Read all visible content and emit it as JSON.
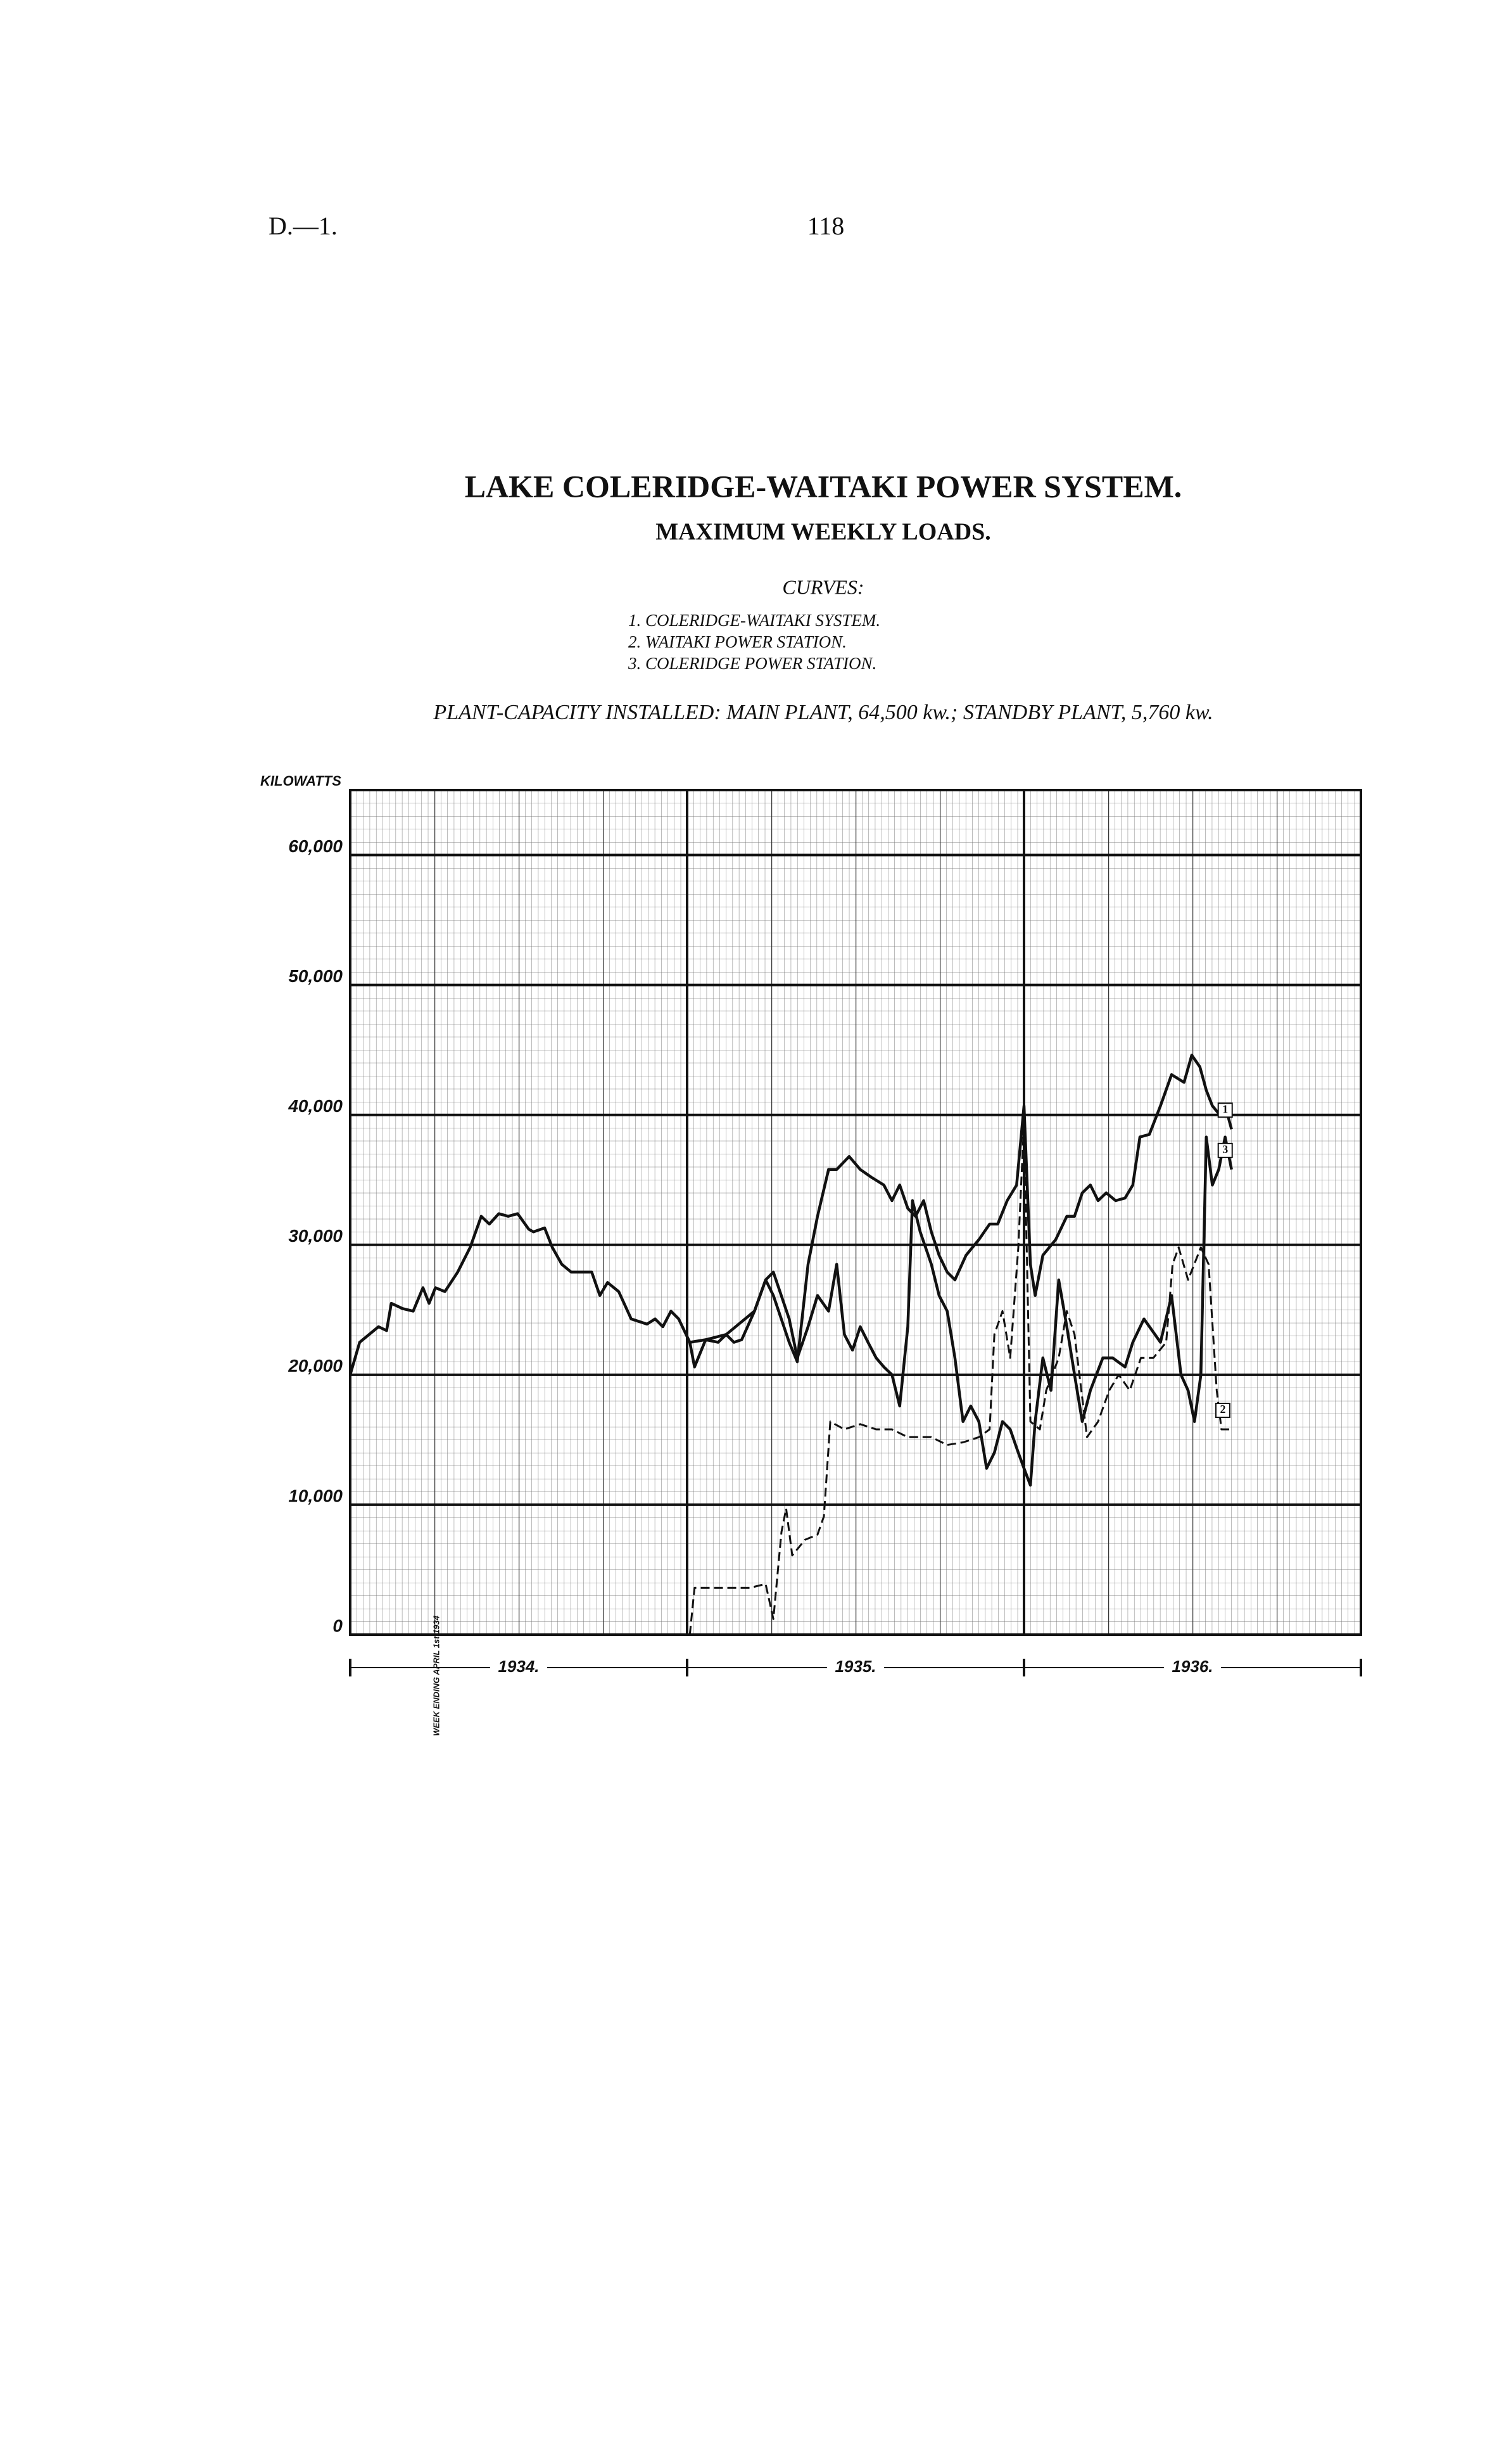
{
  "header": {
    "left": "D.—1.",
    "right": "118"
  },
  "chart_data": {
    "type": "line",
    "title": "LAKE COLERIDGE-WAITAKI POWER SYSTEM.",
    "subtitle": "MAXIMUM WEEKLY LOADS.",
    "curves_heading": "CURVES:",
    "curve_descriptions": [
      "1. COLERIDGE-WAITAKI SYSTEM.",
      "2. WAITAKI POWER STATION.",
      "3. COLERIDGE POWER STATION."
    ],
    "note": "PLANT-CAPACITY INSTALLED: MAIN PLANT, 64,500 kw.; STANDBY PLANT, 5,760 kw.",
    "y_label": "KILOWATTS",
    "x_note": "WEEK ENDING APRIL 1st 1934",
    "xlim": [
      1934,
      1937
    ],
    "xticks": [
      {
        "value": 1934.5,
        "label": "1934."
      },
      {
        "value": 1935.5,
        "label": "1935."
      },
      {
        "value": 1936.5,
        "label": "1936."
      }
    ],
    "ylim": [
      0,
      65000
    ],
    "yticks": [
      0,
      {
        "value": 10000,
        "label": "10,000"
      },
      {
        "value": 20000,
        "label": "20,000"
      },
      {
        "value": 30000,
        "label": "30,000"
      },
      {
        "value": 40000,
        "label": "40,000"
      },
      {
        "value": 50000,
        "label": "50,000"
      },
      {
        "value": 60000,
        "label": "60,000"
      }
    ],
    "grid": true,
    "series": [
      {
        "name": "1",
        "color": "#111111",
        "dashed": false,
        "x": [
          1934.0,
          1934.028,
          1934.084,
          1934.108,
          1934.122,
          1934.155,
          1934.187,
          1934.216,
          1934.234,
          1934.253,
          1934.281,
          1934.319,
          1934.356,
          1934.389,
          1934.413,
          1934.441,
          1934.469,
          1934.497,
          1934.53,
          1934.544,
          1934.577,
          1934.6,
          1934.628,
          1934.656,
          1934.684,
          1934.717,
          1934.741,
          1934.764,
          1934.797,
          1934.834,
          1934.881,
          1934.905,
          1934.928,
          1934.952,
          1934.975,
          1935.008,
          1935.022,
          1935.055,
          1935.092,
          1935.116,
          1935.139,
          1935.162,
          1935.2,
          1935.233,
          1935.256,
          1935.303,
          1935.327,
          1935.359,
          1935.387,
          1935.42,
          1935.444,
          1935.481,
          1935.514,
          1935.547,
          1935.584,
          1935.608,
          1935.631,
          1935.655,
          1935.678,
          1935.702,
          1935.725,
          1935.748,
          1935.772,
          1935.795,
          1935.828,
          1935.866,
          1935.898,
          1935.922,
          1935.95,
          1935.978,
          1936.0,
          1936.019,
          1936.033,
          1936.056,
          1936.094,
          1936.127,
          1936.15,
          1936.173,
          1936.197,
          1936.22,
          1936.244,
          1936.272,
          1936.3,
          1936.323,
          1936.344,
          1936.372,
          1936.405,
          1936.438,
          1936.475,
          1936.498,
          1936.522,
          1936.541,
          1936.559,
          1936.578,
          1936.597,
          1936.616
        ],
        "values": [
          20000,
          22500,
          23700,
          23400,
          25500,
          25100,
          24900,
          26700,
          25500,
          26700,
          26400,
          27900,
          29800,
          32200,
          31600,
          32400,
          32200,
          32400,
          31200,
          31000,
          31300,
          29800,
          28500,
          27900,
          27900,
          27900,
          26100,
          27100,
          26400,
          24300,
          23900,
          24300,
          23700,
          24900,
          24300,
          22500,
          20600,
          22700,
          22500,
          23100,
          22500,
          22700,
          24900,
          27300,
          26100,
          22500,
          21000,
          28500,
          32200,
          35800,
          35800,
          36800,
          35800,
          35200,
          34600,
          33400,
          34600,
          32800,
          32200,
          33400,
          31000,
          29200,
          27900,
          27300,
          29200,
          30400,
          31600,
          31600,
          33400,
          34600,
          40700,
          28500,
          26100,
          29200,
          30400,
          32200,
          32200,
          34000,
          34600,
          33400,
          34000,
          33400,
          33600,
          34600,
          38300,
          38500,
          40700,
          43100,
          42500,
          44600,
          43700,
          41900,
          40700,
          40100,
          40700,
          38900
        ]
      },
      {
        "name": "2",
        "color": "#111111",
        "dashed": true,
        "x": [
          1935.008,
          1935.022,
          1935.069,
          1935.139,
          1935.186,
          1935.233,
          1935.256,
          1935.28,
          1935.294,
          1935.312,
          1935.35,
          1935.387,
          1935.406,
          1935.425,
          1935.467,
          1935.514,
          1935.561,
          1935.608,
          1935.655,
          1935.725,
          1935.772,
          1935.819,
          1935.866,
          1935.898,
          1935.912,
          1935.936,
          1935.959,
          1935.983,
          1936.0,
          1936.019,
          1936.047,
          1936.066,
          1936.103,
          1936.127,
          1936.15,
          1936.187,
          1936.22,
          1936.253,
          1936.281,
          1936.314,
          1936.347,
          1936.384,
          1936.422,
          1936.441,
          1936.459,
          1936.487,
          1936.525,
          1936.548,
          1936.572,
          1936.586,
          1936.609
        ],
        "values": [
          0,
          3600,
          3600,
          3600,
          3600,
          3900,
          1200,
          7900,
          9700,
          6100,
          7300,
          7700,
          9100,
          16400,
          15800,
          16200,
          15800,
          15800,
          15200,
          15200,
          14600,
          14800,
          15200,
          15800,
          23100,
          24900,
          21300,
          29800,
          39500,
          16400,
          15800,
          18800,
          21300,
          24900,
          23100,
          15200,
          16400,
          18800,
          20000,
          18800,
          21300,
          21300,
          22500,
          28500,
          29800,
          27300,
          29800,
          28500,
          18800,
          15800,
          15800
        ]
      },
      {
        "name": "3",
        "color": "#111111",
        "dashed": false,
        "x": [
          1935.008,
          1935.055,
          1935.116,
          1935.2,
          1935.233,
          1935.256,
          1935.303,
          1935.327,
          1935.359,
          1935.387,
          1935.42,
          1935.444,
          1935.467,
          1935.491,
          1935.514,
          1935.537,
          1935.561,
          1935.584,
          1935.608,
          1935.631,
          1935.655,
          1935.669,
          1935.692,
          1935.725,
          1935.748,
          1935.772,
          1935.795,
          1935.819,
          1935.842,
          1935.866,
          1935.889,
          1935.912,
          1935.936,
          1935.959,
          1935.983,
          1936.0,
          1936.019,
          1936.033,
          1936.056,
          1936.08,
          1936.103,
          1936.127,
          1936.15,
          1936.173,
          1936.197,
          1936.234,
          1936.263,
          1936.3,
          1936.323,
          1936.356,
          1936.405,
          1936.438,
          1936.466,
          1936.487,
          1936.506,
          1936.525,
          1936.541,
          1936.559,
          1936.578,
          1936.597,
          1936.616
        ],
        "values": [
          22500,
          22700,
          23100,
          24900,
          27300,
          27900,
          24300,
          21300,
          23700,
          26100,
          24900,
          28500,
          23100,
          21900,
          23700,
          22500,
          21300,
          20600,
          20000,
          17600,
          23700,
          33400,
          31000,
          28500,
          26100,
          24900,
          21300,
          16400,
          17600,
          16400,
          12800,
          14000,
          16400,
          15800,
          14000,
          12800,
          11500,
          16400,
          21300,
          18800,
          27300,
          23700,
          20000,
          16400,
          18800,
          21300,
          21300,
          20600,
          22500,
          24300,
          22500,
          26100,
          20000,
          18800,
          16400,
          20000,
          38300,
          34600,
          35800,
          38300,
          35800
        ]
      }
    ]
  }
}
